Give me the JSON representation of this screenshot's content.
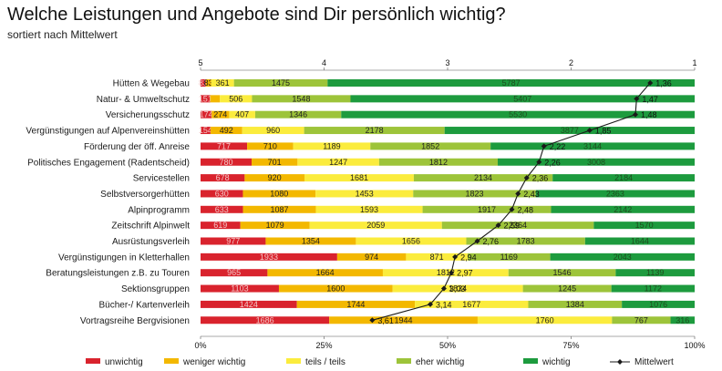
{
  "title": "Welche Leistungen und Angebote sind Dir persönlich wichtig?",
  "subtitle": "sortiert nach Mittelwert",
  "colors": {
    "unwichtig": "#d9232d",
    "weniger_wichtig": "#f3b800",
    "teils_teils": "#fbec3d",
    "eher_wichtig": "#9dc43a",
    "wichtig": "#1d9b3e",
    "mittelwert": "#1a1a1a"
  },
  "chart_data": {
    "type": "bar",
    "stacked": true,
    "orientation": "horizontal",
    "normalized_percent": true,
    "categories": [
      "Hütten & Wegebau",
      "Natur- & Umweltschutz",
      "Versicherungsschutz",
      "Vergünstigungen auf Alpenvereinshütten",
      "Förderung der öff. Anreise",
      "Politisches Engagement (Radentscheid)",
      "Servicestellen",
      "Selbstversorgerhütten",
      "Alpinprogramm",
      "Zeitschrift Alpinwelt",
      "Ausrüstungsverleih",
      "Vergünstigungen in Kletterhallen",
      "Beratungsleistungen z.B. zu Touren",
      "Sektionsgruppen",
      "Bücher-/ Kartenverleih",
      "Vortragsreihe Bergvisionen"
    ],
    "series": [
      {
        "name": "unwichtig",
        "values": [
          83,
          151,
          174,
          154,
          717,
          780,
          678,
          630,
          633,
          619,
          977,
          1933,
          965,
          1103,
          1424,
          1686
        ]
      },
      {
        "name": "weniger wichtig",
        "values": [
          83,
          151,
          274,
          492,
          710,
          701,
          920,
          1080,
          1087,
          1079,
          1354,
          974,
          1664,
          1600,
          1744,
          1944
        ]
      },
      {
        "name": "teils / teils",
        "values": [
          361,
          506,
          407,
          960,
          1189,
          1247,
          1681,
          1453,
          1593,
          2059,
          1656,
          871,
          1812,
          1834,
          1677,
          1760
        ]
      },
      {
        "name": "eher wichtig",
        "values": [
          1475,
          1548,
          1346,
          2178,
          1852,
          1812,
          2134,
          1823,
          1917,
          2364,
          1783,
          1169,
          1546,
          1245,
          1384,
          767
        ]
      },
      {
        "name": "wichtig",
        "values": [
          5787,
          5407,
          5530,
          3877,
          3144,
          3008,
          2184,
          2363,
          2142,
          1570,
          1644,
          2043,
          1139,
          1172,
          1076,
          316
        ]
      }
    ],
    "series_label_text": [
      [
        "83",
        "83",
        "361",
        "1475",
        "5787"
      ],
      [
        "151",
        "",
        "506",
        "1548",
        "5407"
      ],
      [
        "174",
        "274",
        "407",
        "1346",
        "5530"
      ],
      [
        "154",
        "492",
        "960",
        "2178",
        "3877"
      ],
      [
        "717",
        "710",
        "1189",
        "1852",
        "3144"
      ],
      [
        "780",
        "701",
        "1247",
        "1812",
        "3008"
      ],
      [
        "678",
        "920",
        "1681",
        "2134",
        "2184"
      ],
      [
        "630",
        "1080",
        "1453",
        "1823",
        "2363"
      ],
      [
        "633",
        "1087",
        "1593",
        "1917",
        "2142"
      ],
      [
        "619",
        "1079",
        "2059",
        "2364",
        "1570"
      ],
      [
        "977",
        "1354",
        "1656",
        "1783",
        "1644"
      ],
      [
        "1933",
        "974",
        "871",
        "1169",
        "2043"
      ],
      [
        "965",
        "1664",
        "1812",
        "1546",
        "1139"
      ],
      [
        "1103",
        "1600",
        "1834",
        "1245",
        "1172"
      ],
      [
        "1424",
        "1744",
        "1677",
        "1384",
        "1076"
      ],
      [
        "1686",
        "1944",
        "1760",
        "767",
        "316"
      ]
    ],
    "mittelwert": {
      "name": "Mittelwert",
      "values": [
        1.36,
        1.47,
        1.48,
        1.85,
        2.22,
        2.26,
        2.36,
        2.43,
        2.48,
        2.59,
        2.76,
        2.94,
        2.97,
        3.03,
        3.14,
        3.61
      ],
      "labels": [
        "1,36",
        "1,47",
        "1,48",
        "1,85",
        "2,22",
        "2,26",
        "2,36",
        "2,43",
        "2,48",
        "2,59",
        "2,76",
        "2,94",
        "2,97",
        "3,03",
        "3,14",
        "3,61"
      ]
    },
    "x_axis_bottom": {
      "range": [
        0,
        100
      ],
      "ticks": [
        0,
        25,
        50,
        75,
        100
      ],
      "tick_labels": [
        "0%",
        "25%",
        "50%",
        "75%",
        "100%"
      ]
    },
    "x_axis_top": {
      "range": [
        5,
        1
      ],
      "ticks": [
        5,
        4,
        3,
        2,
        1
      ],
      "tick_labels": [
        "5",
        "4",
        "3",
        "2",
        "1"
      ]
    },
    "legend": {
      "placement": "bottom",
      "entries": [
        "unwichtig",
        "weniger wichtig",
        "teils / teils",
        "eher wichtig",
        "wichtig",
        "Mittelwert"
      ]
    },
    "grid": false
  }
}
